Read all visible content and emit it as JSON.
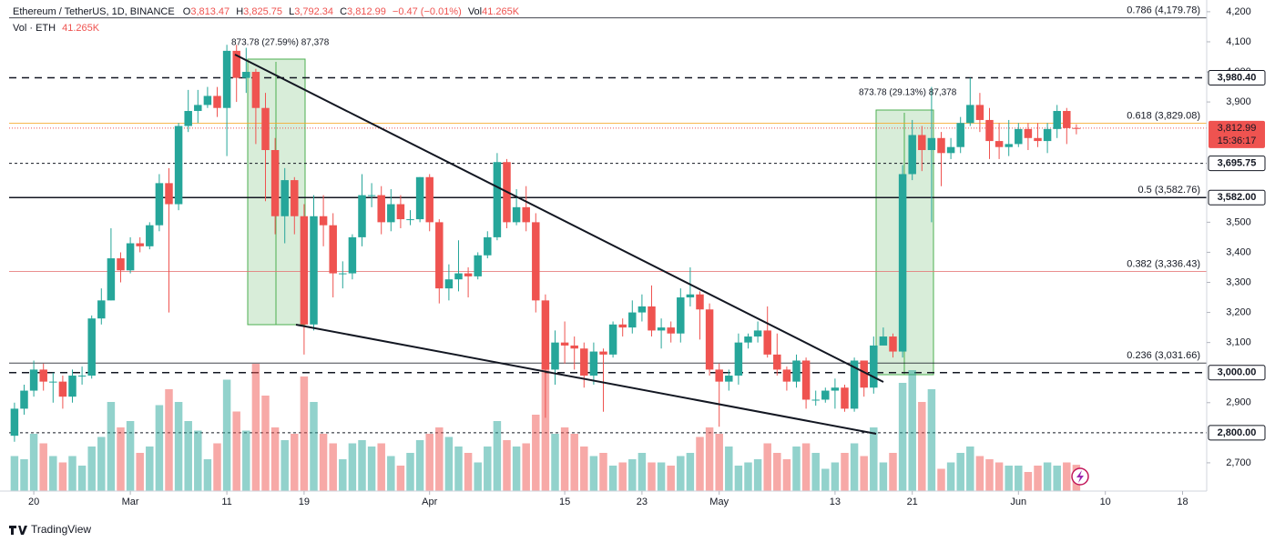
{
  "header": {
    "symbol": "Ethereum / TetherUS, 1D, BINANCE",
    "ohlc": [
      {
        "key": "O",
        "value": "3,813.47"
      },
      {
        "key": "H",
        "value": "3,825.75"
      },
      {
        "key": "L",
        "value": "3,792.34"
      },
      {
        "key": "C",
        "value": "3,812.99"
      }
    ],
    "change": "−0.47 (−0.01%)",
    "vol_title": "Vol",
    "vol": "41.265K",
    "volume_name": "Vol · ETH"
  },
  "chart_data": {
    "type": "candlestick",
    "x": [
      0,
      1,
      2,
      3,
      4,
      5,
      6,
      7,
      8,
      9,
      10,
      11,
      12,
      13,
      14,
      15,
      16,
      17,
      18,
      19,
      20,
      21,
      22,
      23,
      24,
      25,
      26,
      27,
      28,
      29,
      30,
      31,
      32,
      33,
      34,
      35,
      36,
      37,
      38,
      39,
      40,
      41,
      42,
      43,
      44,
      45,
      46,
      47,
      48,
      49,
      50,
      51,
      52,
      53,
      54,
      55,
      56,
      57,
      58,
      59,
      60,
      61,
      62,
      63,
      64,
      65,
      66,
      67,
      68,
      69,
      70,
      71,
      72,
      73,
      74,
      75,
      76,
      77,
      78,
      79,
      80,
      81,
      82,
      83,
      84,
      85,
      86,
      87,
      88,
      89,
      90,
      91,
      92,
      93,
      94,
      95,
      96,
      97,
      98,
      99,
      100,
      101,
      102,
      103,
      104,
      105,
      106,
      107,
      108,
      109,
      110
    ],
    "open": [
      2790,
      2880,
      2940,
      3010,
      2970,
      2970,
      2920,
      2990,
      2990,
      3180,
      3240,
      3380,
      3340,
      3430,
      3420,
      3490,
      3630,
      3560,
      3820,
      3870,
      3890,
      3920,
      3880,
      4070,
      3980,
      4000,
      3880,
      3740,
      3520,
      3640,
      3520,
      3160,
      3520,
      3490,
      3330,
      3330,
      3450,
      3590,
      3590,
      3500,
      3560,
      3510,
      3510,
      3650,
      3500,
      3280,
      3310,
      3330,
      3320,
      3390,
      3450,
      3700,
      3500,
      3550,
      3500,
      3240,
      3010,
      3100,
      3090,
      3080,
      2990,
      3070,
      3060,
      3160,
      3150,
      3200,
      3220,
      3140,
      3150,
      3130,
      3250,
      3260,
      3210,
      3010,
      2970,
      2990,
      3100,
      3120,
      3140,
      3060,
      3010,
      2970,
      3040,
      2910,
      2910,
      2940,
      2950,
      2880,
      3040,
      2950,
      3090,
      3120,
      3070,
      3660,
      3790,
      3740,
      3780,
      3730,
      3750,
      3830,
      3890,
      3840,
      3770,
      3750,
      3760,
      3810,
      3780,
      3770,
      3810,
      3870,
      3813.47
    ],
    "high": [
      2900,
      2960,
      3040,
      3030,
      3000,
      2990,
      3010,
      3020,
      3190,
      3280,
      3480,
      3400,
      3450,
      3450,
      3500,
      3660,
      3680,
      3830,
      3940,
      3940,
      3950,
      3950,
      4090,
      4090,
      4080,
      4010,
      3930,
      3780,
      3680,
      3650,
      3560,
      3590,
      3590,
      3530,
      3370,
      3460,
      3660,
      3630,
      3620,
      3610,
      3590,
      3540,
      3650,
      3660,
      3510,
      3360,
      3440,
      3350,
      3400,
      3470,
      3730,
      3710,
      3610,
      3620,
      3530,
      3260,
      3140,
      3170,
      3120,
      3100,
      3100,
      3080,
      3170,
      3180,
      3240,
      3260,
      3290,
      3180,
      3170,
      3280,
      3350,
      3270,
      3230,
      3030,
      3010,
      3130,
      3130,
      3170,
      3220,
      3130,
      3020,
      3060,
      3050,
      2940,
      2950,
      2980,
      2960,
      3050,
      3040,
      3120,
      3150,
      3130,
      3690,
      3840,
      3820,
      3950,
      3800,
      3780,
      3850,
      3980,
      3930,
      3880,
      3830,
      3840,
      3830,
      3830,
      3830,
      3830,
      3890,
      3880,
      3825.75
    ],
    "low": [
      2770,
      2860,
      2920,
      2940,
      2900,
      2880,
      2900,
      2960,
      2980,
      3160,
      3240,
      3300,
      3330,
      3400,
      3410,
      3470,
      3200,
      3540,
      3800,
      3830,
      3880,
      3850,
      3720,
      3900,
      3930,
      3760,
      3570,
      3460,
      3430,
      3460,
      3060,
      3140,
      3420,
      3250,
      3280,
      3310,
      3420,
      3550,
      3460,
      3470,
      3480,
      3490,
      3500,
      3470,
      3230,
      3240,
      3270,
      3250,
      3310,
      3380,
      3440,
      3480,
      3490,
      3470,
      3200,
      2850,
      2960,
      3030,
      3010,
      2950,
      2960,
      2870,
      3050,
      3120,
      3130,
      3170,
      3120,
      3080,
      3100,
      3100,
      3220,
      3110,
      2990,
      2820,
      2940,
      2960,
      3080,
      3100,
      3050,
      2990,
      2940,
      2950,
      2880,
      2890,
      2900,
      2880,
      2870,
      2870,
      2920,
      2930,
      3090,
      3050,
      3050,
      3640,
      3670,
      3500,
      3620,
      3710,
      3730,
      3820,
      3800,
      3710,
      3710,
      3720,
      3750,
      3740,
      3750,
      3730,
      3780,
      3760,
      3792.34
    ],
    "close": [
      2880,
      2940,
      3010,
      2970,
      2970,
      2920,
      2990,
      2990,
      3180,
      3240,
      3380,
      3340,
      3430,
      3420,
      3490,
      3630,
      3560,
      3820,
      3870,
      3890,
      3920,
      3880,
      4070,
      3980,
      4000,
      3880,
      3740,
      3520,
      3640,
      3520,
      3160,
      3520,
      3490,
      3330,
      3330,
      3450,
      3590,
      3590,
      3500,
      3560,
      3510,
      3510,
      3650,
      3500,
      3280,
      3310,
      3330,
      3320,
      3390,
      3450,
      3700,
      3500,
      3550,
      3500,
      3240,
      3010,
      3100,
      3090,
      3080,
      2990,
      3070,
      3060,
      3160,
      3150,
      3200,
      3220,
      3140,
      3150,
      3130,
      3250,
      3260,
      3210,
      3010,
      2970,
      2990,
      3100,
      3120,
      3140,
      3060,
      3010,
      2970,
      3040,
      2910,
      2910,
      2940,
      2950,
      2880,
      3040,
      2950,
      3090,
      3120,
      3070,
      3660,
      3790,
      3740,
      3780,
      3730,
      3750,
      3830,
      3890,
      3840,
      3770,
      3750,
      3760,
      3810,
      3780,
      3770,
      3810,
      3870,
      3813,
      3812.99
    ],
    "volume": [
      55,
      50,
      90,
      75,
      55,
      45,
      55,
      40,
      70,
      85,
      140,
      100,
      110,
      60,
      70,
      135,
      160,
      140,
      110,
      95,
      50,
      75,
      175,
      125,
      95,
      200,
      150,
      100,
      80,
      90,
      180,
      140,
      90,
      75,
      50,
      75,
      80,
      70,
      75,
      55,
      40,
      60,
      80,
      90,
      100,
      85,
      70,
      60,
      45,
      70,
      110,
      80,
      70,
      75,
      120,
      200,
      90,
      100,
      90,
      70,
      55,
      60,
      40,
      45,
      50,
      60,
      45,
      45,
      40,
      55,
      60,
      85,
      100,
      90,
      70,
      40,
      45,
      50,
      75,
      60,
      50,
      70,
      75,
      60,
      35,
      45,
      60,
      75,
      55,
      100,
      45,
      60,
      170,
      190,
      140,
      160,
      35,
      45,
      60,
      70,
      55,
      50,
      45,
      40,
      40,
      30,
      40,
      45,
      40,
      45,
      41.265
    ],
    "up_color": "#26a69a",
    "down_color": "#ef5350",
    "xlim": [
      -1.5,
      123.5
    ],
    "xticks": [
      {
        "value": 2,
        "label": "20"
      },
      {
        "value": 12,
        "label": "Mar"
      },
      {
        "value": 22,
        "label": "11"
      },
      {
        "value": 30,
        "label": "19"
      },
      {
        "value": 43,
        "label": "Apr"
      },
      {
        "value": 57,
        "label": "15"
      },
      {
        "value": 65,
        "label": "23"
      },
      {
        "value": 73,
        "label": "May"
      },
      {
        "value": 85,
        "label": "13"
      },
      {
        "value": 93,
        "label": "21"
      },
      {
        "value": 104,
        "label": "Jun"
      },
      {
        "value": 113,
        "label": "10"
      },
      {
        "value": 121,
        "label": "18"
      }
    ],
    "ylim": [
      2606,
      4239
    ],
    "yticks": [
      {
        "value": 4200,
        "label": "4,200"
      },
      {
        "value": 4100,
        "label": "4,100"
      },
      {
        "value": 4000,
        "label": "4,000"
      },
      {
        "value": 3900,
        "label": "3,900"
      },
      {
        "value": 3500,
        "label": "3,500"
      },
      {
        "value": 3400,
        "label": "3,400"
      },
      {
        "value": 3300,
        "label": "3,300"
      },
      {
        "value": 3200,
        "label": "3,200"
      },
      {
        "value": 3100,
        "label": "3,100"
      },
      {
        "value": 2900,
        "label": "2,900"
      },
      {
        "value": 2700,
        "label": "2,700"
      }
    ],
    "levels": [
      {
        "value": 3980.4,
        "label": "3,980.40",
        "style": "dashed"
      },
      {
        "value": 3695.75,
        "label": "3,695.75",
        "style": "dotted"
      },
      {
        "value": 3582.0,
        "label": "3,582.00",
        "style": "solid"
      },
      {
        "value": 3000.0,
        "label": "3,000.00",
        "style": "dashed"
      },
      {
        "value": 2800.0,
        "label": "2,800.00",
        "style": "dotted"
      }
    ],
    "fib_levels": [
      {
        "value": 4179.78,
        "label": "0.786 (4,179.78)",
        "color": "#131722"
      },
      {
        "value": 3829.08,
        "label": "0.618 (3,829.08)",
        "color": "#f5a623"
      },
      {
        "value": 3582.76,
        "label": "0.5 (3,582.76)",
        "color": "#131722"
      },
      {
        "value": 3336.43,
        "label": "0.382 (3,336.43)",
        "color": "#e57373"
      },
      {
        "value": 3031.66,
        "label": "0.236 (3,031.66)",
        "color": "#131722"
      }
    ],
    "annotations": [
      "873.78 (27.59%) 87,378",
      "873.78 (29.13%) 87,378"
    ],
    "countdown": "15:36:17"
  },
  "footer": {
    "brand": "TradingView"
  }
}
